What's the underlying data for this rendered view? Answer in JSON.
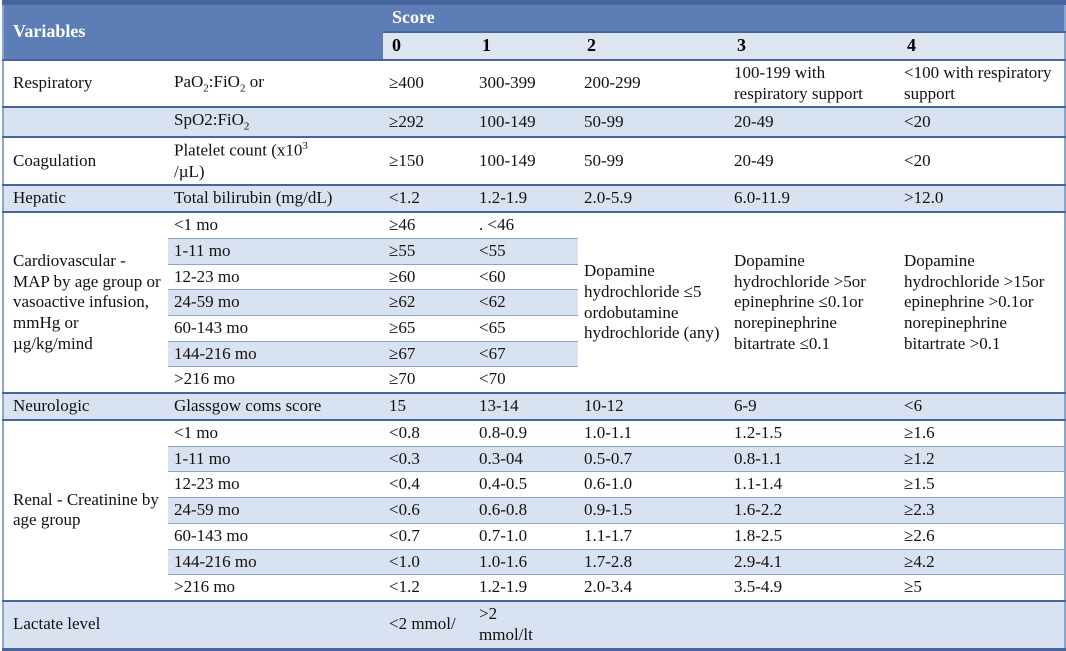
{
  "title": "Pediatric organ dysfunction scoring table",
  "colors": {
    "header_blue": "#5d7db7",
    "header_row_light": "#dde5f1",
    "row_stripe": "#d9e2f0",
    "section_border": "#46659f",
    "row_border": "#8ba6ce",
    "header_text": "#ffffff",
    "body_text": "#111111"
  },
  "table": {
    "header": {
      "variables_label": "Variables",
      "score_label": "Score",
      "score_columns": [
        "0",
        "1",
        "2",
        "3",
        "4"
      ]
    },
    "rows": [
      {
        "section": true,
        "shade": false,
        "cells": [
          {
            "t": "Respiratory",
            "k": "variable"
          },
          {
            "t": "PaO_{2}:FiO_{2} or",
            "k": "measure"
          },
          {
            "t": "≥400"
          },
          {
            "t": "300-399"
          },
          {
            "t": "200-299"
          },
          {
            "t": "100-199 with respiratory support"
          },
          {
            "t": "<100 with respiratory support"
          }
        ]
      },
      {
        "section": true,
        "shade": true,
        "cells": [
          {
            "t": "",
            "k": "variable"
          },
          {
            "t": "SpO2:FiO_{2}",
            "k": "measure"
          },
          {
            "t": "≥292"
          },
          {
            "t": "100-149"
          },
          {
            "t": "50-99"
          },
          {
            "t": "20-49"
          },
          {
            "t": "<20"
          }
        ]
      },
      {
        "section": true,
        "shade": false,
        "cells": [
          {
            "t": "Coagulation",
            "k": "variable"
          },
          {
            "t": "Platelet count (x10^{3}\n/µL)",
            "k": "measure"
          },
          {
            "t": "≥150"
          },
          {
            "t": "100-149"
          },
          {
            "t": "50-99"
          },
          {
            "t": "20-49"
          },
          {
            "t": "<20"
          }
        ]
      },
      {
        "section": true,
        "shade": true,
        "cells": [
          {
            "t": "Hepatic",
            "k": "variable"
          },
          {
            "t": "Total bilirubin (mg/dL)",
            "k": "measure"
          },
          {
            "t": "<1.2"
          },
          {
            "t": "1.2-1.9"
          },
          {
            "t": "2.0-5.9"
          },
          {
            "t": "6.0-11.9"
          },
          {
            "t": ">12.0"
          }
        ]
      },
      {
        "section": true,
        "shade": false,
        "cells": [
          {
            "t": "Cardiovascular - MAP by age group or vasoactive infusion, mmHg or µg/kg/mind",
            "k": "variable",
            "rs": 7
          },
          {
            "t": "<1 mo",
            "k": "measure"
          },
          {
            "t": "≥46"
          },
          {
            "t": ". <46"
          },
          {
            "t": "Dopamine hydrochloride ≤5 ordobutamine hydrochloride (any)",
            "k": "merged",
            "rs": 7
          },
          {
            "t": "Dopamine hydrochloride >5or epinephrine ≤0.1or norepinephrine bitartrate ≤0.1",
            "k": "merged",
            "rs": 7
          },
          {
            "t": "Dopamine hydrochloride >15or epinephrine >0.1or norepinephrine bitartrate >0.1",
            "k": "merged",
            "rs": 7
          }
        ]
      },
      {
        "shade": true,
        "cells": [
          {
            "t": "1-11 mo",
            "k": "measure"
          },
          {
            "t": "≥55"
          },
          {
            "t": "<55"
          }
        ]
      },
      {
        "shade": false,
        "cells": [
          {
            "t": "12-23 mo",
            "k": "measure"
          },
          {
            "t": "≥60"
          },
          {
            "t": "<60"
          }
        ]
      },
      {
        "shade": true,
        "cells": [
          {
            "t": "24-59 mo",
            "k": "measure"
          },
          {
            "t": "≥62"
          },
          {
            "t": "<62"
          }
        ]
      },
      {
        "shade": false,
        "cells": [
          {
            "t": "60-143 mo",
            "k": "measure"
          },
          {
            "t": "≥65"
          },
          {
            "t": "<65"
          }
        ]
      },
      {
        "shade": true,
        "cells": [
          {
            "t": "144-216 mo",
            "k": "measure"
          },
          {
            "t": "≥67"
          },
          {
            "t": "<67"
          }
        ]
      },
      {
        "shade": false,
        "cells": [
          {
            "t": ">216 mo",
            "k": "measure"
          },
          {
            "t": "≥70"
          },
          {
            "t": "<70"
          }
        ]
      },
      {
        "section": true,
        "shade": true,
        "cells": [
          {
            "t": "Neurologic",
            "k": "variable"
          },
          {
            "t": "Glassgow coms score",
            "k": "measure"
          },
          {
            "t": "15"
          },
          {
            "t": "13-14"
          },
          {
            "t": "10-12"
          },
          {
            "t": "6-9"
          },
          {
            "t": "<6"
          }
        ]
      },
      {
        "section": true,
        "shade": false,
        "cells": [
          {
            "t": "Renal - Creatinine by age group",
            "k": "variable",
            "rs": 7
          },
          {
            "t": "<1 mo",
            "k": "measure"
          },
          {
            "t": "<0.8"
          },
          {
            "t": "0.8-0.9"
          },
          {
            "t": "1.0-1.1"
          },
          {
            "t": "1.2-1.5"
          },
          {
            "t": "≥1.6"
          }
        ]
      },
      {
        "shade": true,
        "cells": [
          {
            "t": "1-11 mo",
            "k": "measure"
          },
          {
            "t": "<0.3"
          },
          {
            "t": "0.3-04"
          },
          {
            "t": "0.5-0.7"
          },
          {
            "t": "0.8-1.1"
          },
          {
            "t": "≥1.2"
          }
        ]
      },
      {
        "shade": false,
        "cells": [
          {
            "t": "12-23 mo",
            "k": "measure"
          },
          {
            "t": "<0.4"
          },
          {
            "t": "0.4-0.5"
          },
          {
            "t": "0.6-1.0"
          },
          {
            "t": "1.1-1.4"
          },
          {
            "t": "≥1.5"
          }
        ]
      },
      {
        "shade": true,
        "cells": [
          {
            "t": "24-59 mo",
            "k": "measure"
          },
          {
            "t": "<0.6"
          },
          {
            "t": "0.6-0.8"
          },
          {
            "t": "0.9-1.5"
          },
          {
            "t": "1.6-2.2"
          },
          {
            "t": "≥2.3"
          }
        ]
      },
      {
        "shade": false,
        "cells": [
          {
            "t": "60-143 mo",
            "k": "measure"
          },
          {
            "t": "<0.7"
          },
          {
            "t": "0.7-1.0"
          },
          {
            "t": "1.1-1.7"
          },
          {
            "t": "1.8-2.5"
          },
          {
            "t": "≥2.6"
          }
        ]
      },
      {
        "shade": true,
        "cells": [
          {
            "t": "144-216 mo",
            "k": "measure"
          },
          {
            "t": "<1.0"
          },
          {
            "t": "1.0-1.6"
          },
          {
            "t": "1.7-2.8"
          },
          {
            "t": "2.9-4.1"
          },
          {
            "t": "≥4.2"
          }
        ]
      },
      {
        "shade": false,
        "cells": [
          {
            "t": ">216 mo",
            "k": "measure"
          },
          {
            "t": "<1.2"
          },
          {
            "t": "1.2-1.9"
          },
          {
            "t": "2.0-3.4"
          },
          {
            "t": "3.5-4.9"
          },
          {
            "t": "≥5"
          }
        ]
      },
      {
        "section": true,
        "shade": true,
        "cells": [
          {
            "t": "Lactate level",
            "k": "variable",
            "cs": 2
          },
          {
            "t": "<2 mmol/"
          },
          {
            "t": ">2\nmmol/lt"
          },
          {
            "t": ""
          },
          {
            "t": ""
          },
          {
            "t": ""
          }
        ]
      }
    ]
  }
}
